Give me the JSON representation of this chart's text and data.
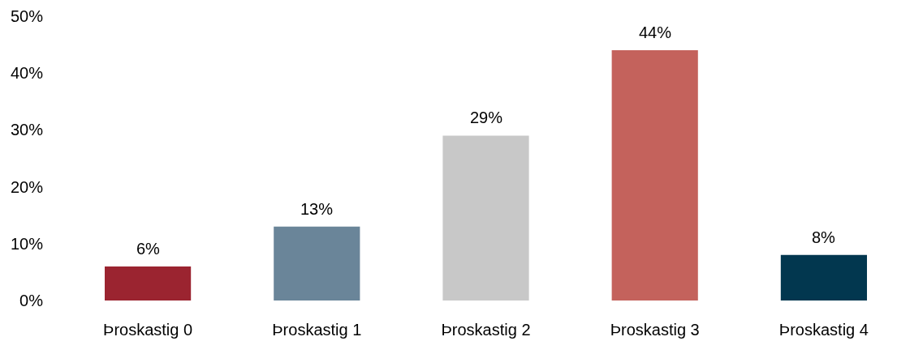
{
  "chart_data": {
    "type": "bar",
    "categories": [
      "Þroskastig 0",
      "Þroskastig 1",
      "Þroskastig 2",
      "Þroskastig 3",
      "Þroskastig 4"
    ],
    "values": [
      6,
      13,
      29,
      44,
      8
    ],
    "colors": [
      "#9b2430",
      "#6a8599",
      "#c8c8c8",
      "#c4625c",
      "#02374f"
    ],
    "value_labels": [
      "6%",
      "13%",
      "29%",
      "44%",
      "8%"
    ],
    "ylim": [
      0,
      50
    ],
    "yticks": [
      {
        "value": 0,
        "label": "0%"
      },
      {
        "value": 10,
        "label": "10%"
      },
      {
        "value": 20,
        "label": "20%"
      },
      {
        "value": 30,
        "label": "30%"
      },
      {
        "value": 40,
        "label": "40%"
      },
      {
        "value": 50,
        "label": "50%"
      }
    ],
    "grid": false
  }
}
